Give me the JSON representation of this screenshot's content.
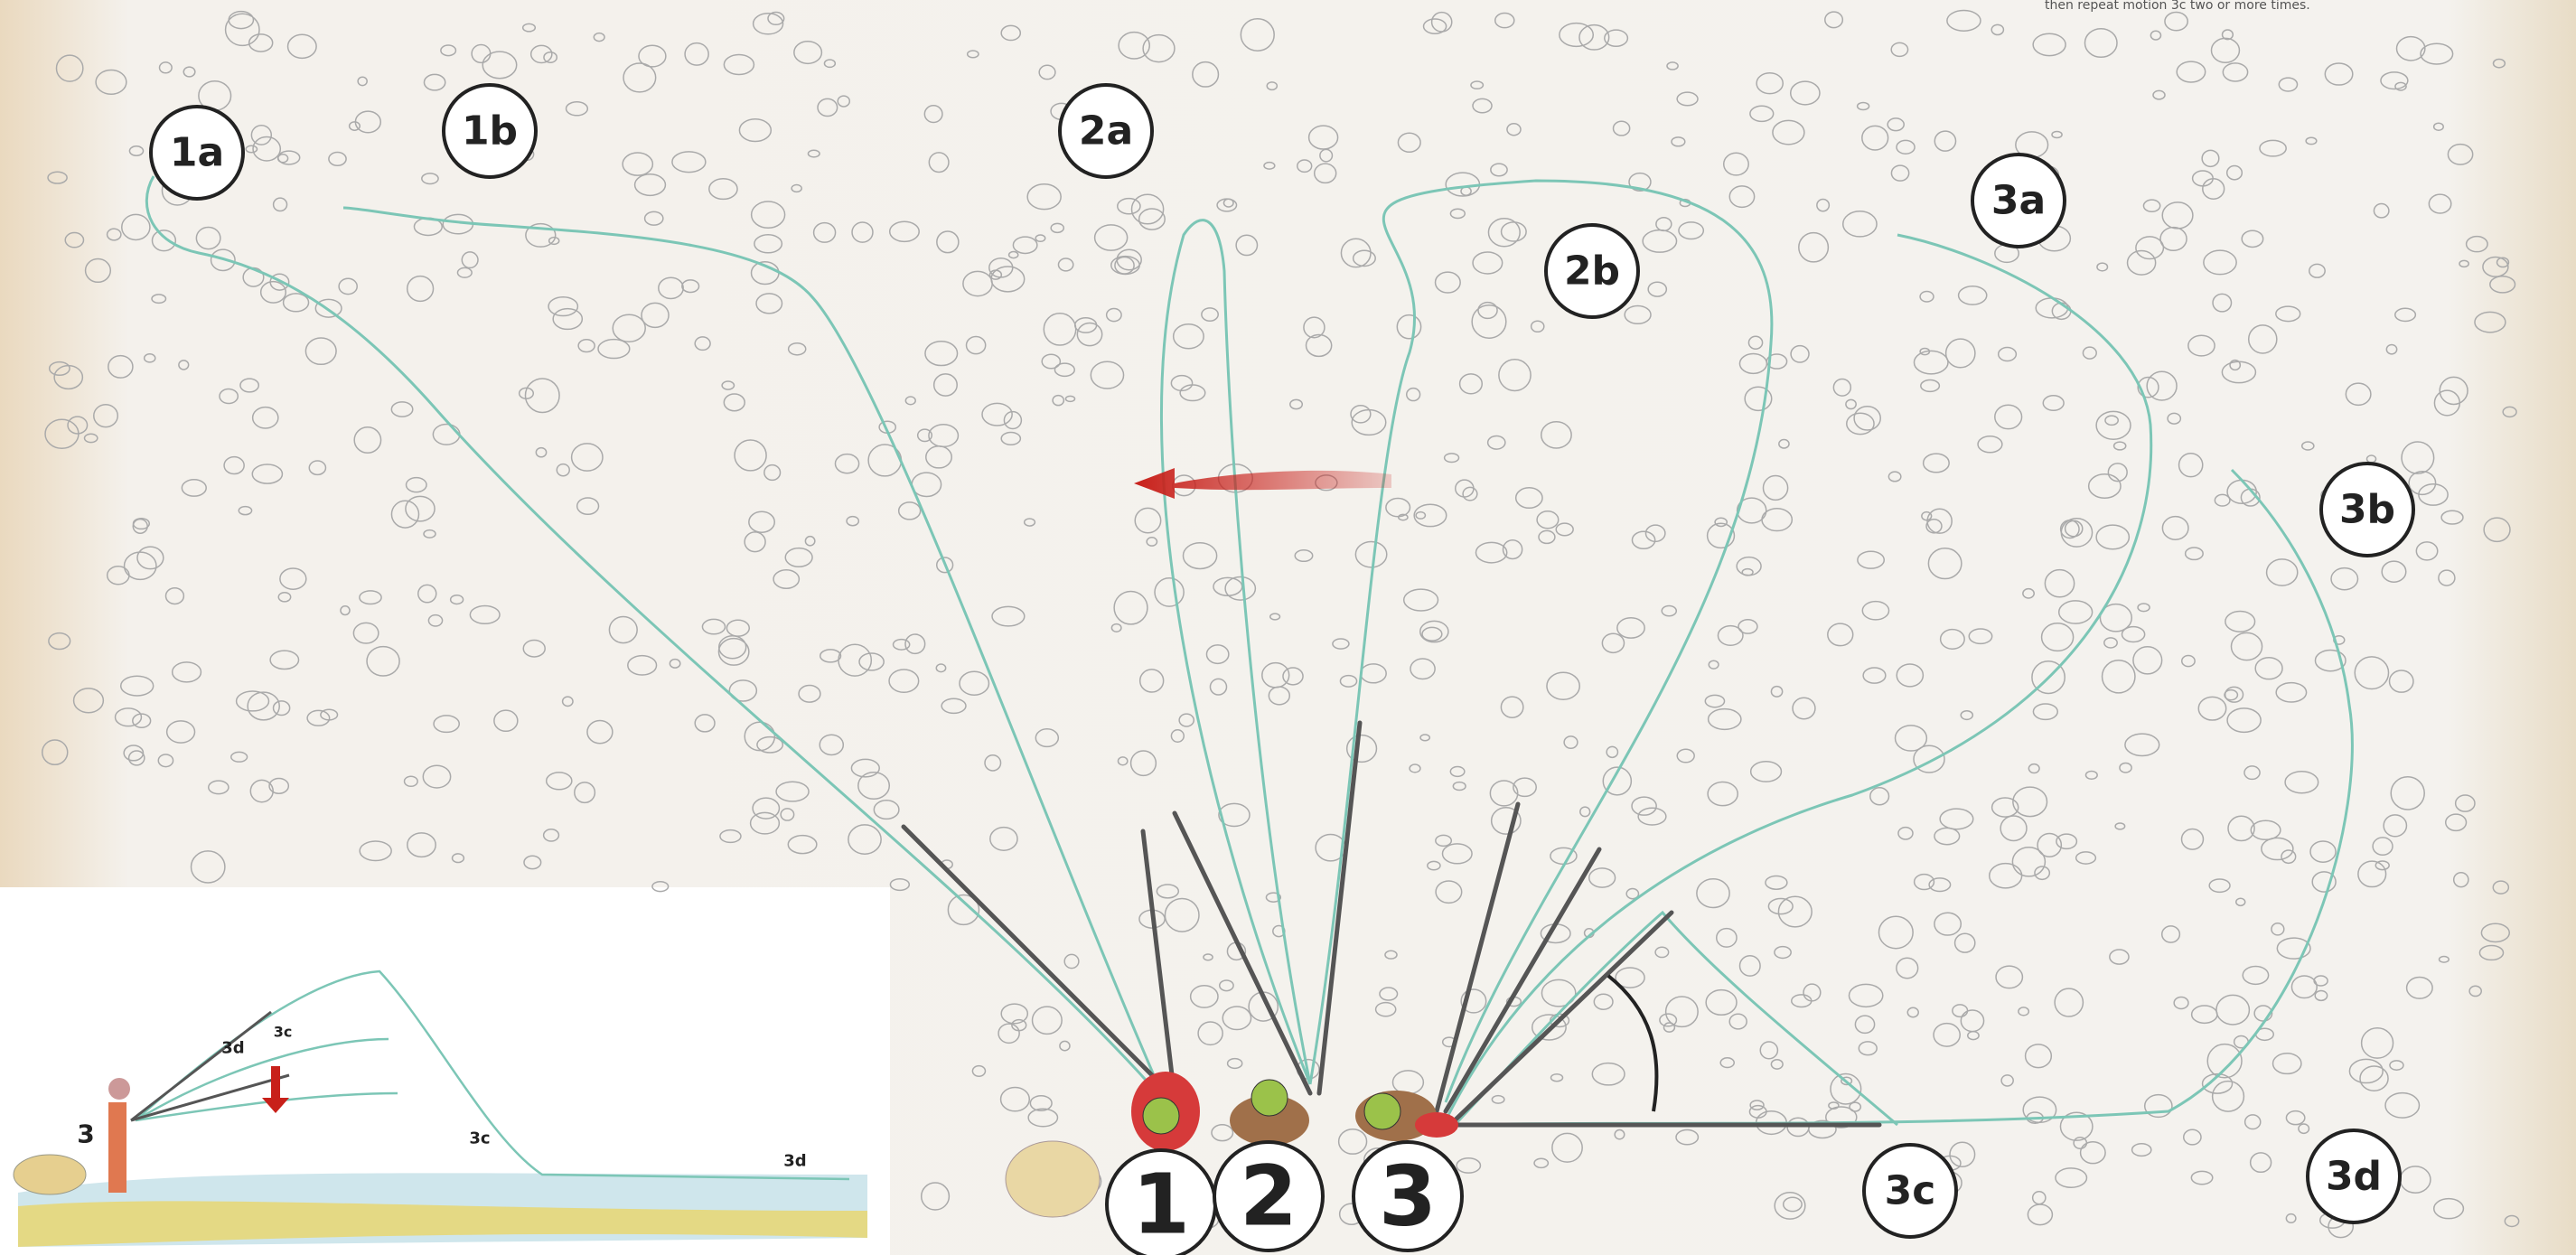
{
  "caption": "then repeat motion 3c two or more times.",
  "markers": [
    "1a",
    "1b",
    "2a",
    "2b",
    "3a",
    "3b",
    "3c",
    "3d"
  ],
  "anglers": [
    "1",
    "2",
    "3"
  ],
  "inset": {
    "labels": [
      "3",
      "3d",
      "3c",
      "3c",
      "3d"
    ]
  }
}
